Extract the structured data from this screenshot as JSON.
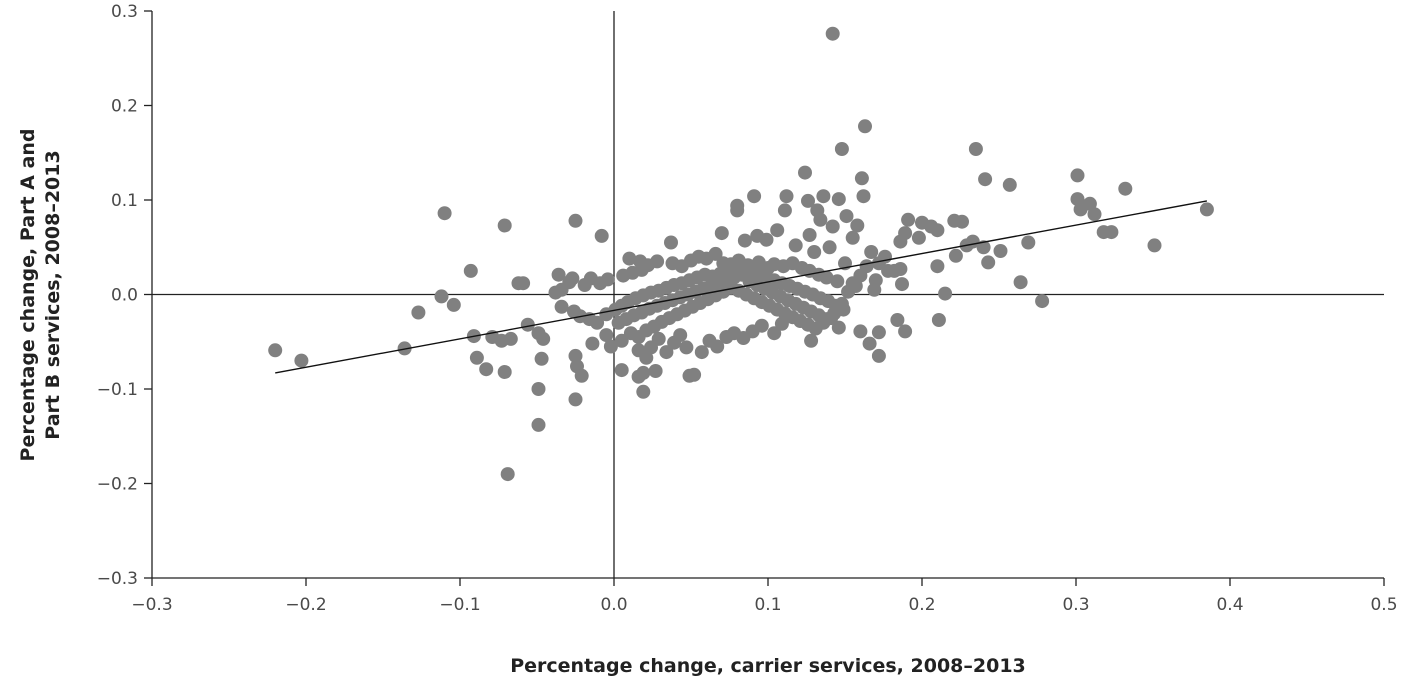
{
  "chart_data": {
    "type": "scatter",
    "title": "",
    "xlabel": "Percentage change, carrier services, 2008–2013",
    "ylabel_lines": [
      "Percentage change, Part A and",
      "Part B services, 2008–2013"
    ],
    "xlim": [
      -0.3,
      0.5
    ],
    "ylim": [
      -0.3,
      0.3
    ],
    "x_ticks": [
      -0.3,
      -0.2,
      -0.1,
      0.0,
      0.1,
      0.2,
      0.3,
      0.4,
      0.5
    ],
    "x_tick_labels": [
      "−0.3",
      "−0.2",
      "−0.1",
      "0.0",
      "0.1",
      "0.2",
      "0.3",
      "0.4",
      "0.5"
    ],
    "y_ticks": [
      0.3,
      0.2,
      0.1,
      0.0,
      -0.1,
      -0.2,
      -0.3
    ],
    "y_tick_labels": [
      "0.3",
      "0.2",
      "0.1",
      "0.0",
      "−0.1",
      "−0.2",
      "−0.3"
    ],
    "grid": false,
    "point_color": "#808080",
    "line_color": "#111111",
    "trend_line": {
      "x": [
        -0.22,
        0.385
      ],
      "y": [
        -0.083,
        0.099
      ]
    },
    "points": [
      [
        0.142,
        0.276
      ],
      [
        0.163,
        0.178
      ],
      [
        0.148,
        0.154
      ],
      [
        0.235,
        0.154
      ],
      [
        0.124,
        0.129
      ],
      [
        0.161,
        0.123
      ],
      [
        0.241,
        0.122
      ],
      [
        0.257,
        0.116
      ],
      [
        0.301,
        0.126
      ],
      [
        0.332,
        0.112
      ],
      [
        0.091,
        0.104
      ],
      [
        0.136,
        0.104
      ],
      [
        0.112,
        0.104
      ],
      [
        0.162,
        0.104
      ],
      [
        0.146,
        0.101
      ],
      [
        0.08,
        0.094
      ],
      [
        0.301,
        0.101
      ],
      [
        0.309,
        0.096
      ],
      [
        0.385,
        0.09
      ],
      [
        0.303,
        0.09
      ],
      [
        0.312,
        0.085
      ],
      [
        0.08,
        0.089
      ],
      [
        0.126,
        0.099
      ],
      [
        0.132,
        0.089
      ],
      [
        0.111,
        0.089
      ],
      [
        0.151,
        0.083
      ],
      [
        -0.11,
        0.086
      ],
      [
        -0.071,
        0.073
      ],
      [
        -0.025,
        0.078
      ],
      [
        0.134,
        0.079
      ],
      [
        0.191,
        0.079
      ],
      [
        0.2,
        0.076
      ],
      [
        0.221,
        0.078
      ],
      [
        0.226,
        0.077
      ],
      [
        0.206,
        0.072
      ],
      [
        0.21,
        0.068
      ],
      [
        0.142,
        0.072
      ],
      [
        0.158,
        0.073
      ],
      [
        0.318,
        0.066
      ],
      [
        0.323,
        0.066
      ],
      [
        0.351,
        0.052
      ],
      [
        0.189,
        0.065
      ],
      [
        0.198,
        0.06
      ],
      [
        0.186,
        0.056
      ],
      [
        0.233,
        0.056
      ],
      [
        0.269,
        0.055
      ],
      [
        0.24,
        0.05
      ],
      [
        0.251,
        0.046
      ],
      [
        0.229,
        0.052
      ],
      [
        0.222,
        0.041
      ],
      [
        0.243,
        0.034
      ],
      [
        0.21,
        0.03
      ],
      [
        0.186,
        0.027
      ],
      [
        0.264,
        0.013
      ],
      [
        0.187,
        0.011
      ],
      [
        0.215,
        0.001
      ],
      [
        0.278,
        -0.007
      ],
      [
        0.211,
        -0.027
      ],
      [
        0.184,
        -0.027
      ],
      [
        0.189,
        -0.039
      ],
      [
        0.16,
        -0.039
      ],
      [
        0.172,
        -0.04
      ],
      [
        0.166,
        -0.052
      ],
      [
        0.172,
        -0.065
      ],
      [
        -0.008,
        0.062
      ],
      [
        0.037,
        0.055
      ],
      [
        0.07,
        0.065
      ],
      [
        0.093,
        0.062
      ],
      [
        0.099,
        0.058
      ],
      [
        0.106,
        0.068
      ],
      [
        0.085,
        0.057
      ],
      [
        0.127,
        0.063
      ],
      [
        0.155,
        0.06
      ],
      [
        0.118,
        0.052
      ],
      [
        0.14,
        0.05
      ],
      [
        0.13,
        0.045
      ],
      [
        0.167,
        0.045
      ],
      [
        0.176,
        0.04
      ],
      [
        0.15,
        0.033
      ],
      [
        0.164,
        0.03
      ],
      [
        0.172,
        0.033
      ],
      [
        0.182,
        0.025
      ],
      [
        0.16,
        0.02
      ],
      [
        0.17,
        0.015
      ],
      [
        0.155,
        0.012
      ],
      [
        0.169,
        0.005
      ],
      [
        0.178,
        0.025
      ],
      [
        -0.093,
        0.025
      ],
      [
        -0.062,
        0.012
      ],
      [
        -0.059,
        0.012
      ],
      [
        -0.036,
        0.021
      ],
      [
        -0.038,
        0.002
      ],
      [
        -0.034,
        0.005
      ],
      [
        -0.029,
        0.013
      ],
      [
        -0.027,
        0.017
      ],
      [
        -0.019,
        0.01
      ],
      [
        -0.015,
        0.017
      ],
      [
        -0.009,
        0.012
      ],
      [
        -0.004,
        0.016
      ],
      [
        0.006,
        0.02
      ],
      [
        0.012,
        0.023
      ],
      [
        0.018,
        0.026
      ],
      [
        0.01,
        0.038
      ],
      [
        0.017,
        0.035
      ],
      [
        0.022,
        0.031
      ],
      [
        0.028,
        0.035
      ],
      [
        0.038,
        0.033
      ],
      [
        0.044,
        0.03
      ],
      [
        0.05,
        0.036
      ],
      [
        0.055,
        0.04
      ],
      [
        0.06,
        0.038
      ],
      [
        0.066,
        0.043
      ],
      [
        0.071,
        0.033
      ],
      [
        0.076,
        0.032
      ],
      [
        0.081,
        0.036
      ],
      [
        0.087,
        0.031
      ],
      [
        0.094,
        0.034
      ],
      [
        0.1,
        0.028
      ],
      [
        0.104,
        0.032
      ],
      [
        0.11,
        0.03
      ],
      [
        0.116,
        0.033
      ],
      [
        0.122,
        0.028
      ],
      [
        0.127,
        0.025
      ],
      [
        0.133,
        0.021
      ],
      [
        0.138,
        0.018
      ],
      [
        0.145,
        0.014
      ],
      [
        -0.112,
        -0.002
      ],
      [
        -0.104,
        -0.011
      ],
      [
        -0.127,
        -0.019
      ],
      [
        -0.034,
        -0.013
      ],
      [
        -0.026,
        -0.018
      ],
      [
        -0.022,
        -0.023
      ],
      [
        -0.016,
        -0.026
      ],
      [
        -0.011,
        -0.03
      ],
      [
        -0.005,
        -0.021
      ],
      [
        0.001,
        -0.016
      ],
      [
        0.005,
        -0.012
      ],
      [
        0.009,
        -0.008
      ],
      [
        0.014,
        -0.004
      ],
      [
        0.019,
        -0.001
      ],
      [
        0.024,
        0.002
      ],
      [
        0.029,
        0.004
      ],
      [
        0.034,
        0.007
      ],
      [
        0.039,
        0.01
      ],
      [
        0.044,
        0.012
      ],
      [
        0.049,
        0.015
      ],
      [
        0.054,
        0.018
      ],
      [
        0.059,
        0.021
      ],
      [
        0.064,
        0.019
      ],
      [
        0.069,
        0.022
      ],
      [
        0.074,
        0.025
      ],
      [
        0.079,
        0.027
      ],
      [
        0.084,
        0.03
      ],
      [
        0.089,
        0.024
      ],
      [
        0.094,
        0.021
      ],
      [
        0.099,
        0.018
      ],
      [
        0.104,
        0.015
      ],
      [
        0.109,
        0.012
      ],
      [
        0.114,
        0.009
      ],
      [
        0.119,
        0.006
      ],
      [
        0.124,
        0.003
      ],
      [
        0.129,
        0.0
      ],
      [
        0.134,
        -0.004
      ],
      [
        0.139,
        -0.007
      ],
      [
        0.144,
        -0.012
      ],
      [
        0.149,
        -0.016
      ],
      [
        0.152,
        0.003
      ],
      [
        0.157,
        0.009
      ],
      [
        0.003,
        -0.03
      ],
      [
        0.008,
        -0.026
      ],
      [
        0.013,
        -0.022
      ],
      [
        0.018,
        -0.019
      ],
      [
        0.023,
        -0.015
      ],
      [
        0.028,
        -0.012
      ],
      [
        0.033,
        -0.009
      ],
      [
        0.038,
        -0.006
      ],
      [
        0.043,
        -0.003
      ],
      [
        0.048,
        0.0
      ],
      [
        0.053,
        0.003
      ],
      [
        0.058,
        0.006
      ],
      [
        0.063,
        0.009
      ],
      [
        0.068,
        0.012
      ],
      [
        0.073,
        0.015
      ],
      [
        0.078,
        0.018
      ],
      [
        0.083,
        0.021
      ],
      [
        0.088,
        0.014
      ],
      [
        0.093,
        0.01
      ],
      [
        0.098,
        0.006
      ],
      [
        0.103,
        0.002
      ],
      [
        0.108,
        -0.002
      ],
      [
        0.113,
        -0.006
      ],
      [
        0.118,
        -0.01
      ],
      [
        0.123,
        -0.014
      ],
      [
        0.128,
        -0.018
      ],
      [
        0.133,
        -0.022
      ],
      [
        0.138,
        -0.026
      ],
      [
        0.143,
        -0.02
      ],
      [
        0.148,
        -0.01
      ],
      [
        0.011,
        -0.041
      ],
      [
        0.016,
        -0.045
      ],
      [
        0.021,
        -0.038
      ],
      [
        0.026,
        -0.034
      ],
      [
        0.031,
        -0.029
      ],
      [
        0.036,
        -0.025
      ],
      [
        0.041,
        -0.021
      ],
      [
        0.046,
        -0.017
      ],
      [
        0.051,
        -0.013
      ],
      [
        0.056,
        -0.009
      ],
      [
        0.061,
        -0.005
      ],
      [
        0.066,
        -0.001
      ],
      [
        0.071,
        0.003
      ],
      [
        0.076,
        0.007
      ],
      [
        0.081,
        0.004
      ],
      [
        0.086,
        0.0
      ],
      [
        0.091,
        -0.004
      ],
      [
        0.096,
        -0.008
      ],
      [
        0.101,
        -0.012
      ],
      [
        0.106,
        -0.016
      ],
      [
        0.111,
        -0.02
      ],
      [
        0.116,
        -0.024
      ],
      [
        0.121,
        -0.028
      ],
      [
        0.126,
        -0.032
      ],
      [
        0.131,
        -0.036
      ],
      [
        0.136,
        -0.03
      ],
      [
        0.141,
        -0.025
      ],
      [
        0.146,
        -0.035
      ],
      [
        -0.079,
        -0.045
      ],
      [
        -0.073,
        -0.049
      ],
      [
        -0.067,
        -0.047
      ],
      [
        -0.056,
        -0.032
      ],
      [
        -0.049,
        -0.041
      ],
      [
        -0.046,
        -0.047
      ],
      [
        -0.091,
        -0.044
      ],
      [
        -0.089,
        -0.067
      ],
      [
        -0.083,
        -0.079
      ],
      [
        -0.071,
        -0.082
      ],
      [
        -0.047,
        -0.068
      ],
      [
        -0.025,
        -0.065
      ],
      [
        -0.024,
        -0.076
      ],
      [
        -0.021,
        -0.086
      ],
      [
        -0.014,
        -0.052
      ],
      [
        -0.005,
        -0.043
      ],
      [
        -0.002,
        -0.055
      ],
      [
        0.005,
        -0.049
      ],
      [
        0.016,
        -0.059
      ],
      [
        0.021,
        -0.067
      ],
      [
        0.024,
        -0.056
      ],
      [
        0.029,
        -0.047
      ],
      [
        0.034,
        -0.061
      ],
      [
        0.039,
        -0.051
      ],
      [
        0.043,
        -0.043
      ],
      [
        0.047,
        -0.056
      ],
      [
        0.052,
        -0.085
      ],
      [
        0.057,
        -0.061
      ],
      [
        0.062,
        -0.049
      ],
      [
        0.067,
        -0.055
      ],
      [
        0.073,
        -0.045
      ],
      [
        0.078,
        -0.041
      ],
      [
        0.084,
        -0.046
      ],
      [
        0.09,
        -0.039
      ],
      [
        0.096,
        -0.033
      ],
      [
        0.104,
        -0.041
      ],
      [
        0.109,
        -0.031
      ],
      [
        0.128,
        -0.049
      ],
      [
        0.005,
        -0.08
      ],
      [
        0.016,
        -0.087
      ],
      [
        0.019,
        -0.083
      ],
      [
        0.019,
        -0.103
      ],
      [
        0.027,
        -0.081
      ],
      [
        0.049,
        -0.086
      ],
      [
        -0.049,
        -0.1
      ],
      [
        -0.025,
        -0.111
      ],
      [
        -0.049,
        -0.138
      ],
      [
        -0.069,
        -0.19
      ],
      [
        -0.136,
        -0.057
      ],
      [
        -0.203,
        -0.07
      ],
      [
        -0.22,
        -0.059
      ]
    ]
  }
}
